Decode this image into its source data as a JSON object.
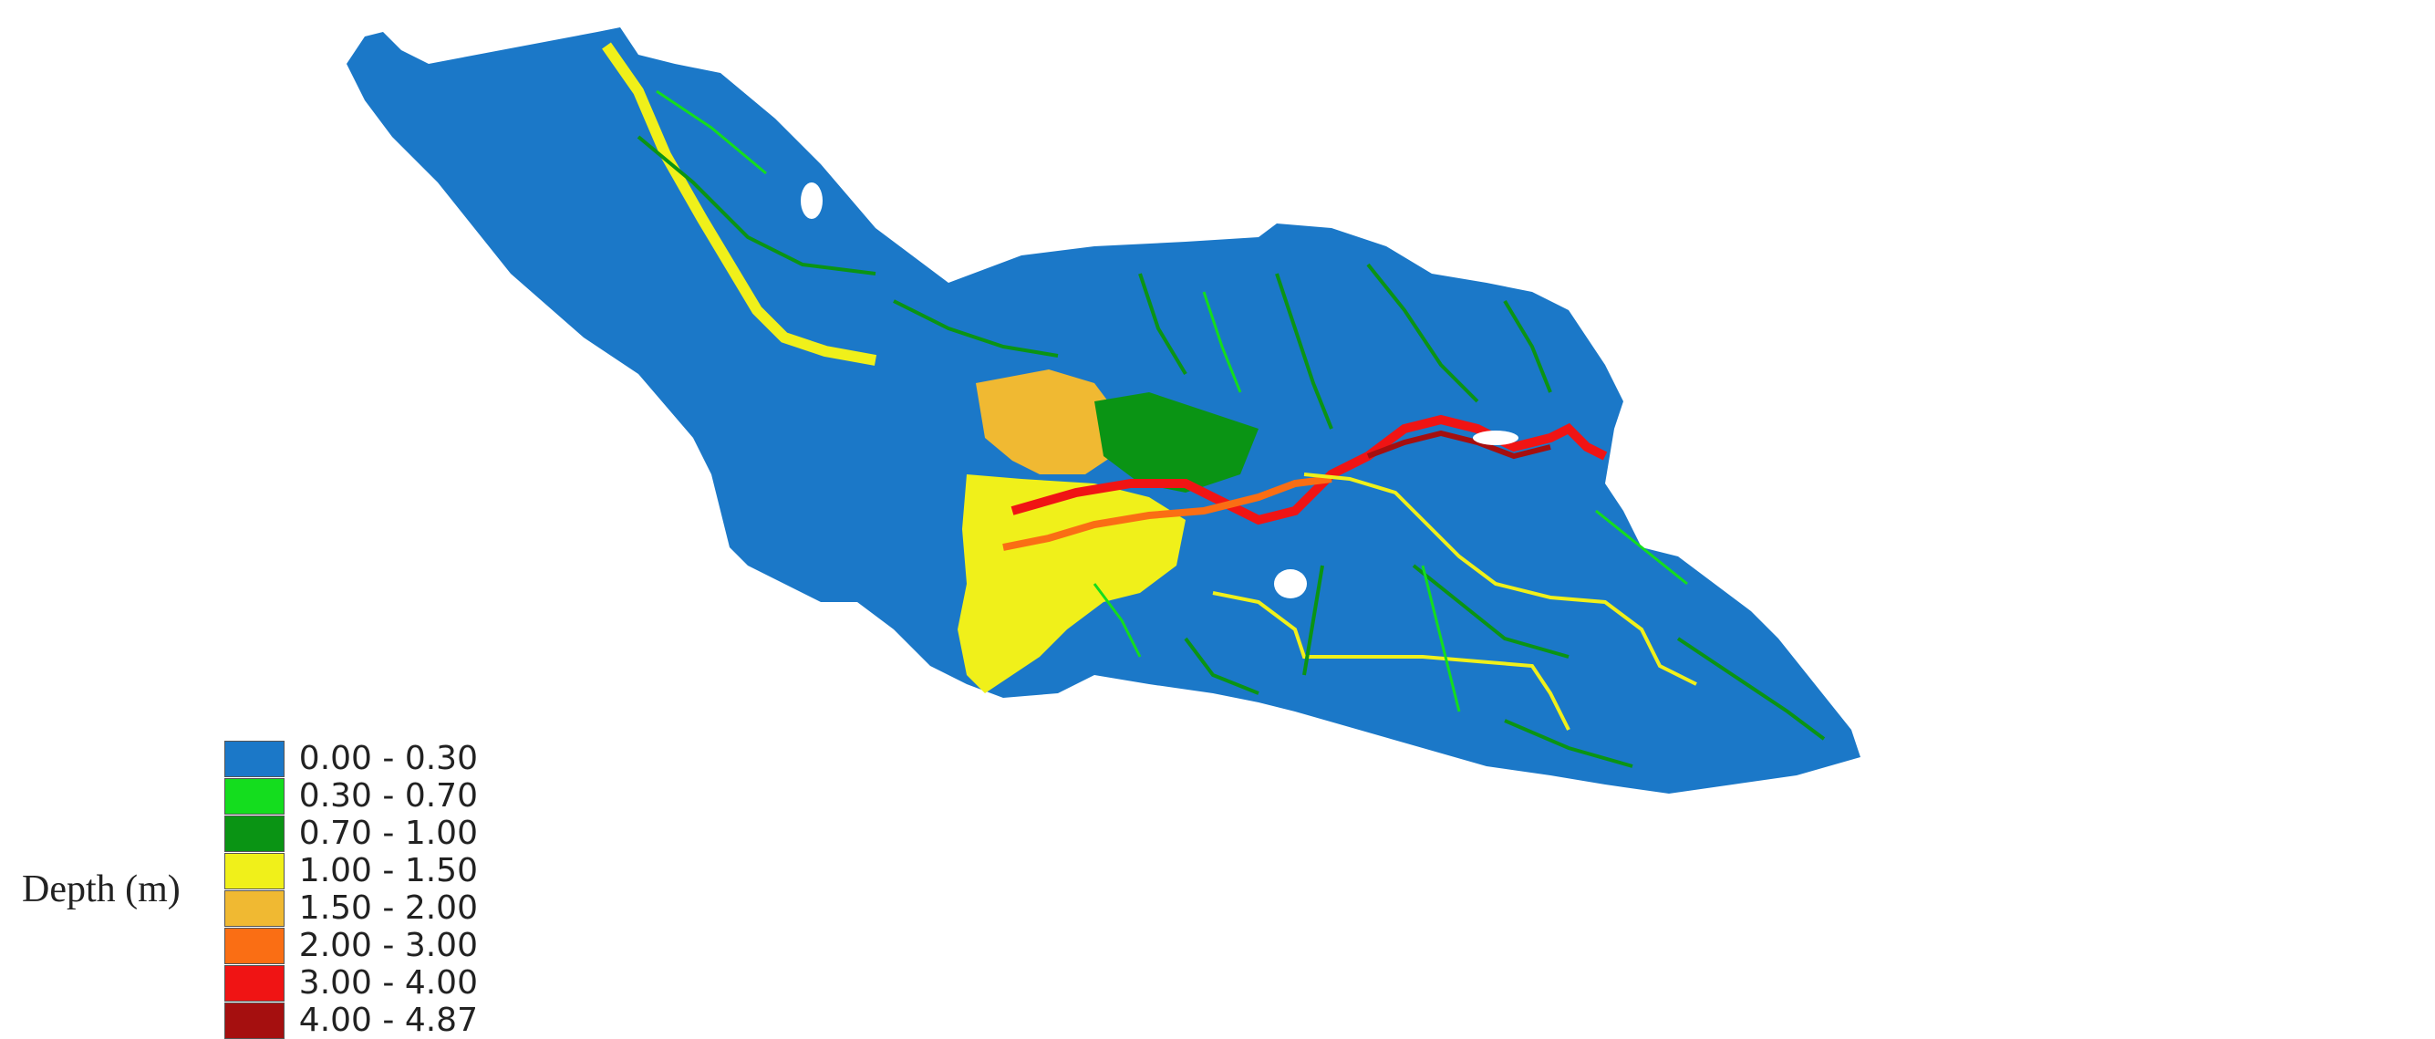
{
  "legend": {
    "title": "Depth (m)",
    "classes": [
      {
        "label": "0.00 - 0.30",
        "color": "#1b78c8"
      },
      {
        "label": "0.30 - 0.70",
        "color": "#14dd1e"
      },
      {
        "label": "0.70 - 1.00",
        "color": "#0a9414"
      },
      {
        "label": "1.00 - 1.50",
        "color": "#f0f01a"
      },
      {
        "label": "1.50 - 2.00",
        "color": "#f0b932"
      },
      {
        "label": "2.00 - 3.00",
        "color": "#fa6e14"
      },
      {
        "label": "3.00 - 4.00",
        "color": "#f01414"
      },
      {
        "label": "4.00 - 4.87",
        "color": "#a50f0f"
      }
    ]
  },
  "map": {
    "type": "flood-depth-raster",
    "background": "#ffffff"
  }
}
